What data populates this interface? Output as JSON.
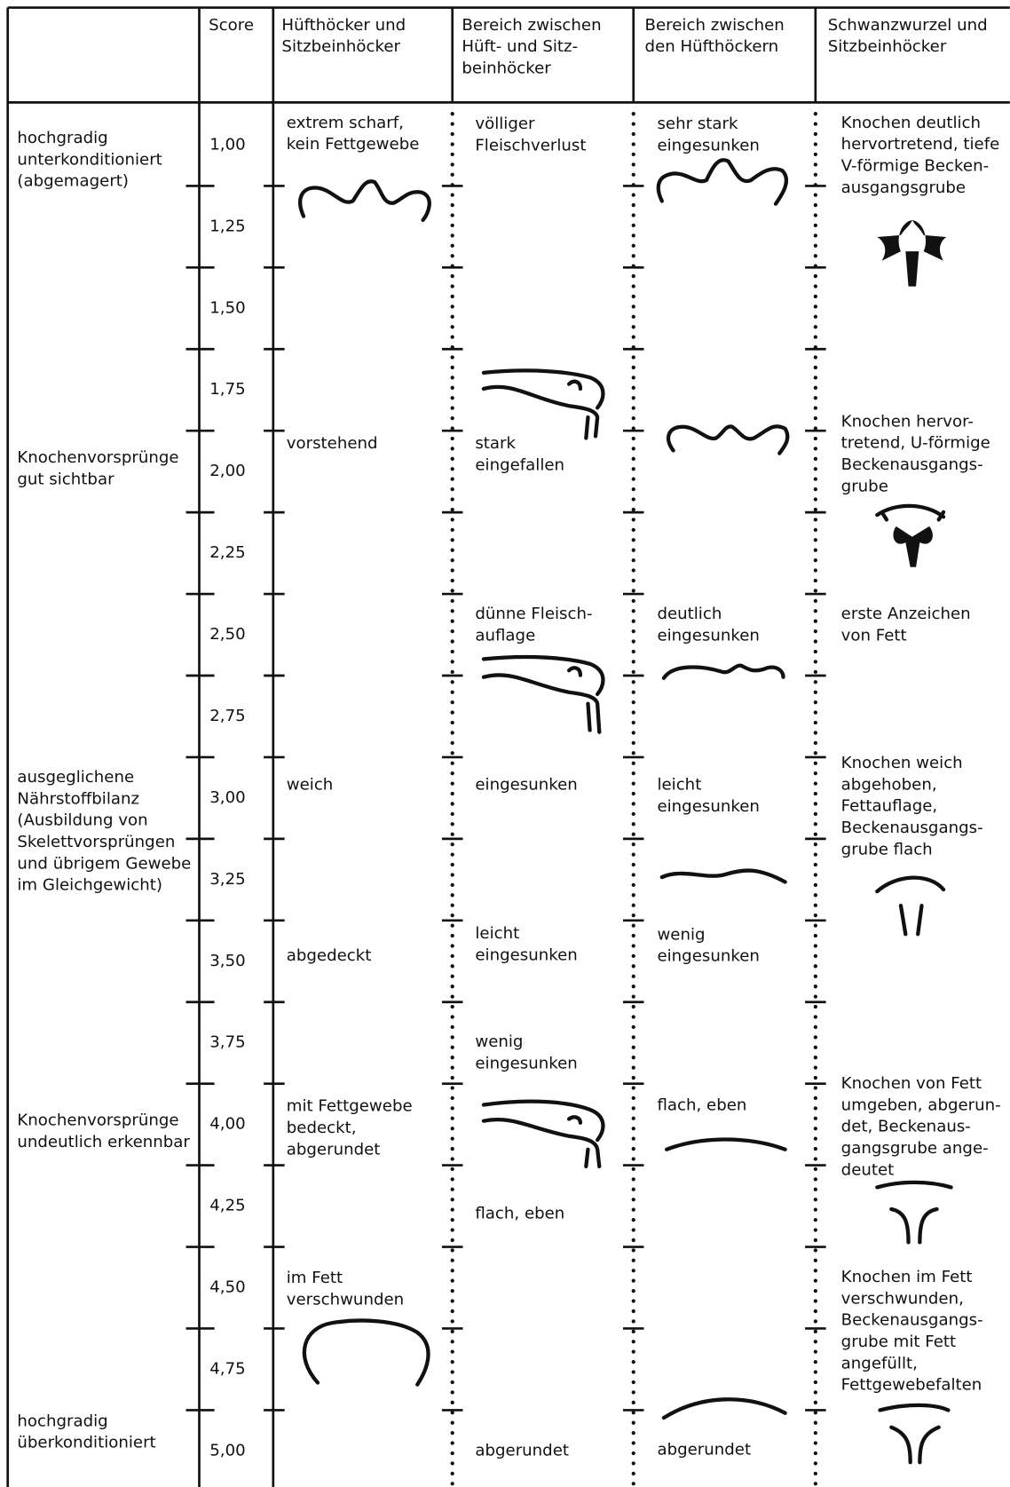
{
  "table": {
    "header": [
      [
        "Score"
      ],
      [
        "Hüfthöcker und",
        "Sitzbeinhöcker"
      ],
      [
        "Bereich zwischen",
        "Hüft- und Sitz-",
        "beinhöcker"
      ],
      [
        "Bereich zwischen",
        "den Hüfthöckern"
      ],
      [
        "Schwanzwurzel und",
        "Sitzbeinhöcker"
      ]
    ],
    "scores": [
      "1,00",
      "1,25",
      "1,50",
      "1,75",
      "2,00",
      "2,25",
      "2,50",
      "2,75",
      "3,00",
      "3,25",
      "3,50",
      "3,75",
      "4,00",
      "4,25",
      "4,50",
      "4,75",
      "5,00"
    ],
    "conditions": [
      [
        "hochgradig",
        "unterkonditioniert",
        "(abgemagert)"
      ],
      [
        "Knochenvorsprünge",
        "gut sichtbar"
      ],
      [
        "ausgeglichene",
        "Nährstoffbilanz",
        "(Ausbildung von",
        "Skelettvorsprüngen",
        "und übrigem Gewebe",
        "im Gleichgewicht)"
      ],
      [
        "Knochenvorsprünge",
        "undeutlich erkennbar"
      ],
      [
        "hochgradig",
        "überkonditioniert"
      ]
    ],
    "columns": [
      [
        [
          "extrem scharf,",
          "kein Fettgewebe"
        ],
        [
          "vorstehend"
        ],
        [
          "weich"
        ],
        [
          "abgedeckt"
        ],
        [
          "mit Fettgewebe",
          "bedeckt,",
          "abgerundet"
        ],
        [
          "im Fett",
          "verschwunden"
        ]
      ],
      [
        [
          "völliger",
          "Fleischverlust"
        ],
        [
          "stark",
          "eingefallen"
        ],
        [
          "dünne Fleisch-",
          "auflage"
        ],
        [
          "eingesunken"
        ],
        [
          "leicht",
          "eingesunken"
        ],
        [
          "wenig",
          "eingesunken"
        ],
        [
          "flach, eben"
        ],
        [
          "abgerundet"
        ]
      ],
      [
        [
          "sehr stark",
          "eingesunken"
        ],
        [
          "deutlich",
          "eingesunken"
        ],
        [
          "leicht",
          "eingesunken"
        ],
        [
          "wenig",
          "eingesunken"
        ],
        [
          "flach, eben"
        ],
        [
          "abgerundet"
        ]
      ],
      [
        [
          "Knochen deutlich",
          "hervortretend, tiefe",
          "V-förmige Becken-",
          "ausgangsgrube"
        ],
        [
          "Knochen hervor-",
          "tretend, U-förmige",
          "Beckenausgangs-",
          "grube"
        ],
        [
          "erste Anzeichen",
          "von Fett"
        ],
        [
          "Knochen weich",
          "abgehoben,",
          "Fettauflage,",
          "Beckenausgangs-",
          "grube flach"
        ],
        [
          "Knochen von Fett",
          "umgeben, abgerun-",
          "det, Beckenaus-",
          "gangsgrube ange-",
          "deutet"
        ],
        [
          "Knochen im Fett",
          "verschwunden,",
          "Beckenausgangs-",
          "grube mit Fett",
          "angefüllt,",
          "Fettgewebefalten"
        ]
      ]
    ]
  }
}
